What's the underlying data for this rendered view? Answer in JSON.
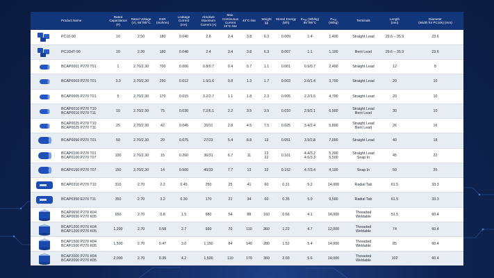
{
  "headers": [
    {
      "label": "",
      "sub": ""
    },
    {
      "label": "Product Name",
      "sub": ""
    },
    {
      "label": "Rated Capacitance",
      "sub": "(F)"
    },
    {
      "label": "Rated Voltage",
      "sub": "(V), 65°/85°C"
    },
    {
      "label": "ESR",
      "sub": "(mohms)"
    },
    {
      "label": "Leakage Current",
      "sub": "(mA)"
    },
    {
      "label": "Absolute Maximum",
      "sub": "Current (A)"
    },
    {
      "label": "Max. Continuous Current",
      "sub": "15°C rise"
    },
    {
      "label": "",
      "sub": "40°C rise"
    },
    {
      "label": "Weight",
      "sub": "(g)"
    },
    {
      "label": "Stored Energy",
      "sub": "(Wh)"
    },
    {
      "label": "Eₘₐₓ (Wh/kg)",
      "sub": "65°/85°C"
    },
    {
      "label": "Pₘₐₓ",
      "sub": "(W/kg)"
    },
    {
      "label": "Terminals",
      "sub": ""
    },
    {
      "label": "Length",
      "sub": "(mm)"
    },
    {
      "label": "Diameter",
      "sub": "(Width for PC10s) (mm)"
    }
  ],
  "rows": [
    {
      "icon": "pc-cell-icon",
      "name": [
        "PC10-90"
      ],
      "cap": "10",
      "volt": "2.50",
      "esr": "180",
      "leak": "0.040",
      "absmax": "2.8",
      "c15": "2.4",
      "c40": "3.8",
      "weight": "6.3",
      "energy": "0.009",
      "emax": "1.4",
      "pmax": "1,400",
      "term": [
        "Straight Lead"
      ],
      "len": "29.6 – 35.9",
      "dia": "23.6"
    },
    {
      "icon": "pc-cell-icon",
      "name": [
        "PC10HT-90"
      ],
      "cap": "10",
      "volt": "2.20",
      "esr": "180",
      "leak": "0.040",
      "absmax": "2.4",
      "c15": "2.4",
      "c40": "3.8",
      "weight": "6.3",
      "energy": "0.007",
      "emax": "1.1",
      "pmax": "1,100",
      "term": [
        "Bent Lead"
      ],
      "len": "29.6 – 35.9",
      "dia": "23.6"
    },
    {
      "icon": "small-cell-icon",
      "name": [
        "BCAP0001 P270 T01"
      ],
      "cap": "1",
      "volt": "2.70/2.30",
      "esr": "700",
      "leak": "0.006",
      "absmax": "0.8/0.7",
      "c15": "0.4",
      "c40": "0.7",
      "weight": "1.1",
      "energy": "0.001",
      "emax": "0.9/0.7",
      "pmax": "2,400",
      "term": [
        "Straight Lead"
      ],
      "len": "12",
      "dia": "8"
    },
    {
      "icon": "small-cell-icon",
      "name": [
        "BCAP0003 P270 T01"
      ],
      "cap": "3.3",
      "volt": "2.70/2.30",
      "esr": "290",
      "leak": "0.012",
      "absmax": "1.9/1.6",
      "c15": "0.8",
      "c40": "1.3",
      "weight": "1.7",
      "energy": "0.003",
      "emax": "2.0/1.4",
      "pmax": "3,700",
      "term": [
        "Straight Lead"
      ],
      "len": "20",
      "dia": "10"
    },
    {
      "icon": "small-cell-icon",
      "name": [
        "BCAP0005 P270 T01"
      ],
      "cap": "5",
      "volt": "2.70/2.30",
      "esr": "170",
      "leak": "0.015",
      "absmax": "3.2/2.7",
      "c15": "1.1",
      "c40": "1.8",
      "weight": "2.3",
      "energy": "0.005",
      "emax": "2.2/1.6",
      "pmax": "4,700",
      "term": [
        "Straight Lead"
      ],
      "len": "20",
      "dia": "10"
    },
    {
      "icon": "small-cell-icon",
      "name": [
        "BCAP0010 P270 T10",
        "BCAP0010 P270 T11"
      ],
      "cap": "10",
      "volt": "2.70/2.30",
      "esr": "75",
      "leak": "0.030",
      "absmax": "7.2/6.1",
      "c15": "2.2",
      "c40": "3.5",
      "weight": "3.5",
      "energy": "0.010",
      "emax": "2.9/2.1",
      "pmax": "6,900",
      "term": [
        "Straight Lead",
        "Bent Lead"
      ],
      "len": "30",
      "dia": "10"
    },
    {
      "icon": "small-cell-icon",
      "name": [
        "BCAP0025 P270 T10",
        "BCAP0025 P270 T11"
      ],
      "cap": "25",
      "volt": "2.70/2.30",
      "esr": "42",
      "leak": "0.045",
      "absmax": "20/11",
      "c15": "2.8",
      "c40": "4.5",
      "weight": "7.5",
      "energy": "0.025",
      "emax": "3.4/2.4",
      "pmax": "5,800",
      "term": [
        "Straight Lead",
        "Bent Lead"
      ],
      "len": "26",
      "dia": "16"
    },
    {
      "icon": "mid-cell-icon",
      "name": [
        "BCAP0050 P270 T01"
      ],
      "cap": "50",
      "volt": "2.70/2.30",
      "esr": "20",
      "leak": "0.075",
      "absmax": "27/23",
      "c15": "5.4",
      "c40": "8.8",
      "weight": "13",
      "energy": "0.051",
      "emax": "3.9/2.8",
      "pmax": "7,000",
      "term": [
        "Straight Lead"
      ],
      "len": "40",
      "dia": "18"
    },
    {
      "icon": "mid-cell-icon",
      "name": [
        "BCAP0100 P270 T01",
        "BCAP0100 P270 T07"
      ],
      "cap": "100",
      "volt": "2.70/2.30",
      "esr": "15",
      "leak": "0.260",
      "absmax": "36/31",
      "c15": "6.7",
      "c40": "11",
      "weight": [
        "23",
        "22"
      ],
      "energy": "0.101",
      "emax": [
        "4.4/3.2",
        "4.6/3.3"
      ],
      "pmax": [
        "5,300",
        "5,500"
      ],
      "term": [
        "Straight Lead",
        "Snap In"
      ],
      "len": "45",
      "dia": "22"
    },
    {
      "icon": "mid-cell-icon",
      "name": [
        "BCAP0150 P270 T07"
      ],
      "cap": "150",
      "volt": "2.70/2.30",
      "esr": "14",
      "leak": "0.500",
      "absmax": "40/33",
      "c15": "7.7",
      "c40": "13",
      "weight": "32",
      "energy": "0.152",
      "emax": "4.7/3.4",
      "pmax": "4,100",
      "term": [
        "Snap In"
      ],
      "len": "50",
      "dia": "25"
    },
    {
      "icon": "radial-cell-icon",
      "name": [
        "BCAP0310 P270 T10"
      ],
      "cap": "310",
      "volt": "2.70",
      "esr": "2.2",
      "leak": "0.45",
      "absmax": "250",
      "c15": "25",
      "c40": "41",
      "weight": "60",
      "energy": "0.31",
      "emax": "5.2",
      "pmax": "14,000",
      "term": [
        "Radial Tab"
      ],
      "len": "61.5",
      "dia": "33.3"
    },
    {
      "icon": "radial-cell-icon",
      "name": [
        "BCAP0350 E270 T11"
      ],
      "cap": "350",
      "volt": "2.70",
      "esr": "3.2",
      "leak": "0.30",
      "absmax": "170",
      "c15": "21",
      "c40": "34",
      "weight": "60",
      "energy": "0.35",
      "emax": "5.9",
      "pmax": "9,500",
      "term": [
        "Radial Tab"
      ],
      "len": "61.5",
      "dia": "33.3"
    },
    {
      "icon": "large-cell-icon",
      "name": [
        "BCAP0650 P270 K04",
        "BCAP0650 P270 K05"
      ],
      "cap": "650",
      "volt": "2.70",
      "esr": "0.8",
      "leak": "1.5",
      "absmax": "680",
      "c15": "54",
      "c40": "88",
      "weight": "160",
      "energy": "0.66",
      "emax": "4.1",
      "pmax": "14,000",
      "term": [
        "Threaded",
        "Weldable"
      ],
      "len": "51.5",
      "dia": "60.4"
    },
    {
      "icon": "large-cell-icon",
      "name": [
        "BCAP1200 P270 K04",
        "BCAP1200 P270 K05"
      ],
      "cap": "1,200",
      "volt": "2.70",
      "esr": "0.58",
      "leak": "2.7",
      "absmax": "930",
      "c15": "70",
      "c40": "110",
      "weight": "260",
      "energy": "1.22",
      "emax": "4.7",
      "pmax": "12,000",
      "term": [
        "Threaded",
        "Weldable"
      ],
      "len": "74",
      "dia": "60.4"
    },
    {
      "icon": "large-cell-icon",
      "name": [
        "BCAP1500 P270 K04",
        "BCAP1500 P270 K05"
      ],
      "cap": "1,500",
      "volt": "2.70",
      "esr": "0.47",
      "leak": "3.0",
      "absmax": "1,150",
      "c15": "84",
      "c40": "140",
      "weight": "280",
      "energy": "1.52",
      "emax": "5.4",
      "pmax": "14,000",
      "term": [
        "Threaded",
        "Weldable"
      ],
      "len": "85",
      "dia": "60.4"
    },
    {
      "icon": "large-cell-icon",
      "name": [
        "BCAP2000 P270 K04",
        "BCAP2000 P270 K05"
      ],
      "cap": "2,000",
      "volt": "2.70",
      "esr": "0.35",
      "leak": "4.2",
      "absmax": "1,500",
      "c15": "110",
      "c40": "170",
      "weight": "360",
      "energy": "2.03",
      "emax": "5.6",
      "pmax": "14,000",
      "term": [
        "Threaded",
        "Weldable"
      ],
      "len": "102",
      "dia": "60.4"
    },
    {
      "icon": "large-cell-icon",
      "name": [
        "BCAP3000 P270 K04",
        "BCAP3000 P270 K05"
      ],
      "cap": "3,000",
      "volt": "2.70",
      "esr": "0.29",
      "leak": "5.2",
      "absmax": "1,900",
      "c15": "130",
      "c40": "210",
      "weight": "510",
      "energy": "3.04",
      "emax": "6.0",
      "pmax": "12,000",
      "term": [
        "Threaded",
        "Weldable"
      ],
      "len": "138",
      "dia": "60.4"
    }
  ]
}
